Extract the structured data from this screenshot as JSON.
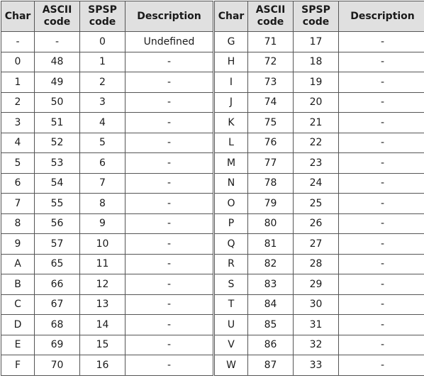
{
  "headers": {
    "char": "Char",
    "ascii": [
      "ASCII",
      "code"
    ],
    "spsp": [
      "SPSP",
      "code"
    ],
    "description": "Description"
  },
  "rows": [
    [
      [
        "-",
        "-",
        "0",
        "Undefined"
      ],
      [
        "G",
        "71",
        "17",
        "-"
      ]
    ],
    [
      [
        "0",
        "48",
        "1",
        "-"
      ],
      [
        "H",
        "72",
        "18",
        "-"
      ]
    ],
    [
      [
        "1",
        "49",
        "2",
        "-"
      ],
      [
        "I",
        "73",
        "19",
        "-"
      ]
    ],
    [
      [
        "2",
        "50",
        "3",
        "-"
      ],
      [
        "J",
        "74",
        "20",
        "-"
      ]
    ],
    [
      [
        "3",
        "51",
        "4",
        "-"
      ],
      [
        "K",
        "75",
        "21",
        "-"
      ]
    ],
    [
      [
        "4",
        "52",
        "5",
        "-"
      ],
      [
        "L",
        "76",
        "22",
        "-"
      ]
    ],
    [
      [
        "5",
        "53",
        "6",
        "-"
      ],
      [
        "M",
        "77",
        "23",
        "-"
      ]
    ],
    [
      [
        "6",
        "54",
        "7",
        "-"
      ],
      [
        "N",
        "78",
        "24",
        "-"
      ]
    ],
    [
      [
        "7",
        "55",
        "8",
        "-"
      ],
      [
        "O",
        "79",
        "25",
        "-"
      ]
    ],
    [
      [
        "8",
        "56",
        "9",
        "-"
      ],
      [
        "P",
        "80",
        "26",
        "-"
      ]
    ],
    [
      [
        "9",
        "57",
        "10",
        "-"
      ],
      [
        "Q",
        "81",
        "27",
        "-"
      ]
    ],
    [
      [
        "A",
        "65",
        "11",
        "-"
      ],
      [
        "R",
        "82",
        "28",
        "-"
      ]
    ],
    [
      [
        "B",
        "66",
        "12",
        "-"
      ],
      [
        "S",
        "83",
        "29",
        "-"
      ]
    ],
    [
      [
        "C",
        "67",
        "13",
        "-"
      ],
      [
        "T",
        "84",
        "30",
        "-"
      ]
    ],
    [
      [
        "D",
        "68",
        "14",
        "-"
      ],
      [
        "U",
        "85",
        "31",
        "-"
      ]
    ],
    [
      [
        "E",
        "69",
        "15",
        "-"
      ],
      [
        "V",
        "86",
        "32",
        "-"
      ]
    ],
    [
      [
        "F",
        "70",
        "16",
        "-"
      ],
      [
        "W",
        "87",
        "33",
        "-"
      ]
    ]
  ]
}
